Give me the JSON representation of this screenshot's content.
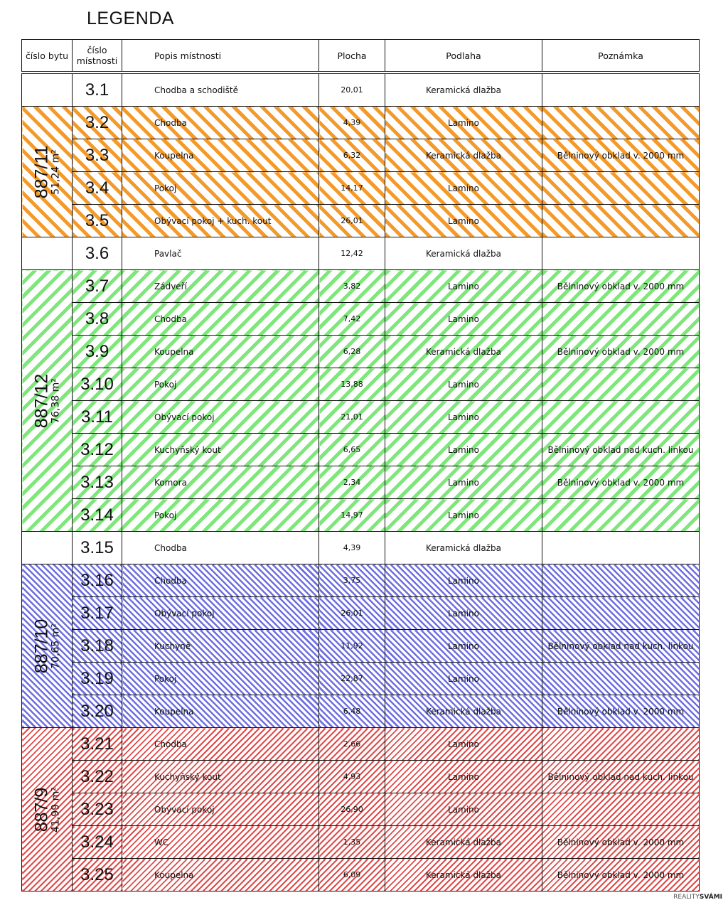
{
  "title": "LEGENDA",
  "headers": {
    "flat": "číslo bytu",
    "room": "číslo místnosti",
    "desc": "Popis místnosti",
    "area": "Plocha",
    "floor": "Podlaha",
    "note": "Poznámka"
  },
  "flats": [
    {
      "id": "887/11",
      "area": "51,24 m²",
      "color": "#f39a2a",
      "pattern": "orange",
      "rooms": [
        1,
        2,
        3,
        4
      ]
    },
    {
      "id": "887/12",
      "area": "76,38 m²",
      "color": "#7ee67a",
      "pattern": "green",
      "rooms": [
        6,
        7,
        8,
        9,
        10,
        11,
        12,
        13
      ]
    },
    {
      "id": "887/10",
      "area": "70,65 m²",
      "color": "#6e6ee0",
      "pattern": "blue",
      "rooms": [
        15,
        16,
        17,
        18,
        19
      ]
    },
    {
      "id": "887/9",
      "area": "41,99 m²",
      "color": "#e04a4a",
      "pattern": "red",
      "rooms": [
        20,
        21,
        22,
        23,
        24
      ]
    }
  ],
  "rows": [
    {
      "num": "3.1",
      "desc": "Chodba a schodiště",
      "area": "20,01",
      "floor": "Keramická dlažba",
      "note": ""
    },
    {
      "num": "3.2",
      "desc": "Chodba",
      "area": "4,39",
      "floor": "Lamino",
      "note": ""
    },
    {
      "num": "3.3",
      "desc": "Koupelna",
      "area": "6,32",
      "floor": "Keramická dlažba",
      "note": "Bělninový obklad v. 2000 mm"
    },
    {
      "num": "3.4",
      "desc": "Pokoj",
      "area": "14,17",
      "floor": "Lamino",
      "note": ""
    },
    {
      "num": "3.5",
      "desc": "Obývací pokoj + kuch. kout",
      "area": "26,01",
      "floor": "Lamino",
      "note": ""
    },
    {
      "num": "3.6",
      "desc": "Pavlač",
      "area": "12,42",
      "floor": "Keramická dlažba",
      "note": ""
    },
    {
      "num": "3.7",
      "desc": "Zádveří",
      "area": "3,82",
      "floor": "Lamino",
      "note": "Bělninový obklad v. 2000 mm"
    },
    {
      "num": "3.8",
      "desc": "Chodba",
      "area": "7,42",
      "floor": "Lamino",
      "note": ""
    },
    {
      "num": "3.9",
      "desc": "Koupelna",
      "area": "6,28",
      "floor": "Keramická dlažba",
      "note": "Bělninový obklad v. 2000 mm"
    },
    {
      "num": "3.10",
      "desc": "Pokoj",
      "area": "13,88",
      "floor": "Lamino",
      "note": ""
    },
    {
      "num": "3.11",
      "desc": "Obývací pokoj",
      "area": "21,01",
      "floor": "Lamino",
      "note": ""
    },
    {
      "num": "3.12",
      "desc": "Kuchyňský kout",
      "area": "6,65",
      "floor": "Lamino",
      "note": "Bělninový obklad nad kuch. linkou"
    },
    {
      "num": "3.13",
      "desc": "Komora",
      "area": "2,34",
      "floor": "Lamino",
      "note": "Bělninový obklad v. 2000 mm"
    },
    {
      "num": "3.14",
      "desc": "Pokoj",
      "area": "14,97",
      "floor": "Lamino",
      "note": ""
    },
    {
      "num": "3.15",
      "desc": "Chodba",
      "area": "4,39",
      "floor": "Keramická dlažba",
      "note": ""
    },
    {
      "num": "3.16",
      "desc": "Chodba",
      "area": "3,75",
      "floor": "Lamino",
      "note": ""
    },
    {
      "num": "3.17",
      "desc": "Obývací pokoj",
      "area": "26,01",
      "floor": "Lamino",
      "note": ""
    },
    {
      "num": "3.18",
      "desc": "Kuchyně",
      "area": "11,92",
      "floor": "Lamino",
      "note": "Bělninový obklad nad kuch. linkou"
    },
    {
      "num": "3.19",
      "desc": "Pokoj",
      "area": "22,87",
      "floor": "Lamino",
      "note": ""
    },
    {
      "num": "3.20",
      "desc": "Koupelna",
      "area": "6,48",
      "floor": "Keramická dlažba",
      "note": "Bělninový obklad v. 2000 mm"
    },
    {
      "num": "3.21",
      "desc": "Chodba",
      "area": "2,66",
      "floor": "Lamino",
      "note": ""
    },
    {
      "num": "3.22",
      "desc": "Kuchyňský kout",
      "area": "4,93",
      "floor": "Lamino",
      "note": "Bělninový obklad nad kuch. linkou"
    },
    {
      "num": "3.23",
      "desc": "Obývací pokoj",
      "area": "26,90",
      "floor": "Lamino",
      "note": ""
    },
    {
      "num": "3.24",
      "desc": "WC",
      "area": "1,35",
      "floor": "Keramická dlažba",
      "note": "Bělninový obklad v. 2000 mm"
    },
    {
      "num": "3.25",
      "desc": "Koupelna",
      "area": "6,09",
      "floor": "Keramická dlažba",
      "note": "Bělninový obklad v. 2000 mm"
    }
  ],
  "logo": {
    "a": "REALITY",
    "b": "SVÁMI"
  }
}
